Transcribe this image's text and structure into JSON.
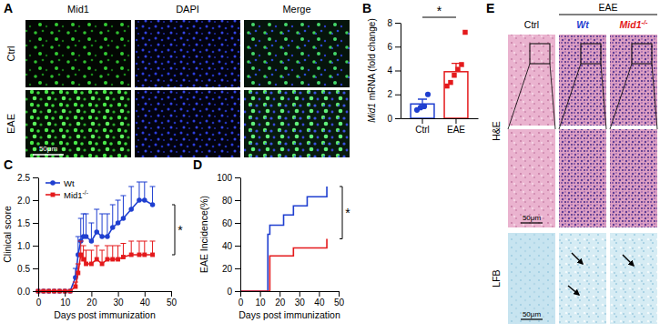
{
  "chart_data": [
    {
      "panel_label": "B",
      "type": "bar",
      "categories": [
        "Ctrl",
        "EAE"
      ],
      "values": [
        1.2,
        3.9
      ],
      "errors": [
        0.4,
        0.7
      ],
      "colors": [
        "#1f3fd0",
        "#e41a1c"
      ],
      "points": [
        [
          0.7,
          0.9,
          1.0,
          2.0
        ],
        [
          2.7,
          3.0,
          3.6,
          4.1,
          4.5,
          7.2
        ]
      ],
      "y_label": "Mid1 mRNA (fold change)",
      "ylim": [
        0,
        8
      ],
      "yticks": [
        0,
        2,
        4,
        6,
        8
      ],
      "annotations": [
        "*"
      ]
    },
    {
      "panel_label": "C",
      "type": "line",
      "x_label": "Days post immunization",
      "y_label": "Clinical score",
      "xlim": [
        0,
        50
      ],
      "xticks": [
        0,
        10,
        20,
        30,
        40,
        50
      ],
      "ylim": [
        0,
        2.5
      ],
      "yticks": [
        {
          "value": 0,
          "label": "0.0"
        },
        0.5,
        {
          "value": 1,
          "label": "1.0"
        },
        1.5,
        {
          "value": 2,
          "label": "2.0"
        },
        2.5
      ],
      "legend": "upper left",
      "line_style": "solid",
      "series": [
        {
          "name": "Wt",
          "color": "#1f3fd0",
          "marker": "circle",
          "x": [
            0,
            2,
            4,
            6,
            8,
            10,
            12,
            14,
            15,
            16,
            17,
            18,
            20,
            22,
            24,
            26,
            28,
            30,
            32,
            35,
            38,
            40,
            43
          ],
          "values": [
            0,
            0,
            0,
            0,
            0,
            0,
            0,
            0.3,
            0.8,
            1.1,
            1.2,
            1.2,
            1.1,
            1.3,
            1.2,
            1.2,
            1.4,
            1.5,
            1.6,
            1.8,
            2.0,
            2.0,
            1.9
          ],
          "errors": [
            0,
            0,
            0,
            0,
            0,
            0,
            0,
            0.2,
            0.4,
            0.5,
            0.5,
            0.5,
            0.4,
            0.5,
            0.5,
            0.5,
            0.5,
            0.5,
            0.5,
            0.5,
            0.4,
            0.4,
            0.4
          ]
        },
        {
          "name": "Mid1-/-",
          "color": "#e41a1c",
          "marker": "square",
          "x": [
            0,
            2,
            4,
            6,
            8,
            10,
            12,
            14,
            15,
            16,
            17,
            18,
            20,
            22,
            24,
            26,
            28,
            30,
            32,
            35,
            38,
            40,
            43
          ],
          "values": [
            0,
            0,
            0,
            0,
            0,
            0,
            0,
            0.1,
            0.4,
            0.8,
            0.7,
            0.6,
            0.6,
            0.7,
            0.6,
            0.7,
            0.7,
            0.7,
            0.75,
            0.8,
            0.8,
            0.8,
            0.8
          ],
          "errors": [
            0,
            0,
            0,
            0,
            0,
            0,
            0,
            0.1,
            0.2,
            0.3,
            0.3,
            0.3,
            0.3,
            0.3,
            0.3,
            0.3,
            0.3,
            0.3,
            0.3,
            0.3,
            0.3,
            0.3,
            0.3
          ]
        }
      ],
      "annotations": [
        "*"
      ]
    },
    {
      "panel_label": "D",
      "type": "line",
      "x_label": "Days post immunization",
      "y_label": "EAE Incidence(%)",
      "xlim": [
        0,
        50
      ],
      "xticks": [
        0,
        10,
        20,
        30,
        40,
        50
      ],
      "ylim": [
        0,
        100
      ],
      "yticks": [
        0,
        20,
        40,
        60,
        80,
        100
      ],
      "line_style": "step",
      "series": [
        {
          "color": "#1f3fd0",
          "x": [
            0,
            14,
            15,
            22,
            27,
            34,
            44
          ],
          "values": [
            0,
            50,
            58,
            67,
            75,
            83,
            92
          ]
        },
        {
          "color": "#e41a1c",
          "x": [
            0,
            15,
            27,
            44
          ],
          "values": [
            0,
            31,
            38,
            46
          ]
        }
      ],
      "annotations": [
        "*"
      ]
    }
  ],
  "micrographs": [
    {
      "panel_label": "A",
      "columns": [
        "Mid1",
        "DAPI",
        "Merge"
      ],
      "rows": [
        "Ctrl",
        "EAE"
      ],
      "scale_bar": "50μm"
    },
    {
      "panel_label": "E",
      "group_label": "EAE",
      "columns": [
        "Ctrl",
        "Wt",
        "Mid1-/-"
      ],
      "rows": [
        "H&E",
        "LFB"
      ],
      "scale_bars": [
        "50μm",
        "50μm"
      ]
    }
  ]
}
